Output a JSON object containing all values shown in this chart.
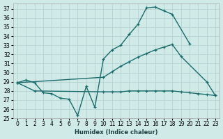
{
  "xlabel": "Humidex (Indice chaleur)",
  "xlim": [
    -0.5,
    23.5
  ],
  "ylim": [
    25,
    37.6
  ],
  "yticks": [
    25,
    26,
    27,
    28,
    29,
    30,
    31,
    32,
    33,
    34,
    35,
    36,
    37
  ],
  "xticks": [
    0,
    1,
    2,
    3,
    4,
    5,
    6,
    7,
    8,
    9,
    10,
    11,
    12,
    13,
    14,
    15,
    16,
    17,
    18,
    19,
    20,
    21,
    22,
    23
  ],
  "bg_color": "#d0eae8",
  "grid_color": "#b8d4d2",
  "line_color": "#1a6b6b",
  "line1_x": [
    0,
    1,
    2,
    3,
    4,
    5,
    6,
    7,
    8,
    9,
    10,
    11,
    12,
    13,
    14,
    15,
    16,
    17,
    18,
    20
  ],
  "line1_y": [
    28.9,
    29.2,
    28.9,
    27.8,
    27.7,
    27.2,
    27.1,
    25.3,
    28.5,
    26.2,
    31.5,
    32.5,
    33.0,
    34.2,
    35.3,
    37.1,
    37.2,
    36.8,
    36.4,
    33.2
  ],
  "line2_x": [
    0,
    10,
    11,
    12,
    13,
    14,
    15,
    16,
    17,
    18,
    19,
    22,
    23
  ],
  "line2_y": [
    28.9,
    29.5,
    30.1,
    30.7,
    31.2,
    31.7,
    32.1,
    32.5,
    32.8,
    33.1,
    31.8,
    29.0,
    27.5
  ],
  "line3_x": [
    0,
    2,
    10,
    11,
    12,
    13,
    14,
    15,
    16,
    17,
    18,
    19,
    20,
    21,
    22,
    23
  ],
  "line3_y": [
    28.9,
    28.0,
    27.9,
    27.9,
    27.9,
    28.0,
    28.0,
    28.0,
    28.0,
    28.0,
    28.0,
    27.9,
    27.8,
    27.7,
    27.6,
    27.5
  ]
}
